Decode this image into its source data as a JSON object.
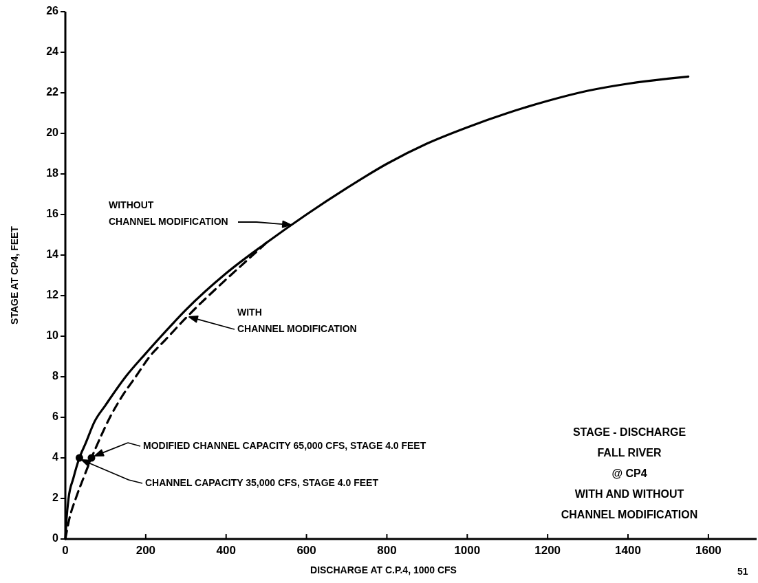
{
  "chart_data": {
    "type": "line",
    "title": "STAGE - DISCHARGE\nFALL RIVER\n@ CP4\nWITH AND WITHOUT\nCHANNEL MODIFICATION",
    "xlabel": "DISCHARGE AT C.P.4,  1000 CFS",
    "ylabel": "STAGE AT CP4,  FEET",
    "series": [
      {
        "type": "line",
        "line_style": "solid",
        "color": "#000000",
        "x": [
          0,
          3,
          8,
          20,
          35,
          50,
          73,
          100,
          150,
          200,
          250,
          300,
          400,
          500,
          600,
          700,
          800,
          900,
          1000,
          1100,
          1200,
          1300,
          1400,
          1500,
          1550
        ],
        "values": [
          0,
          1,
          2,
          3,
          4,
          4.7,
          5.8,
          6.6,
          8,
          9.15,
          10.25,
          11.3,
          13.1,
          14.6,
          16.0,
          17.3,
          18.5,
          19.5,
          20.3,
          21.0,
          21.6,
          22.1,
          22.45,
          22.7,
          22.8
        ]
      },
      {
        "type": "line",
        "line_style": "dashed",
        "color": "#000000",
        "x": [
          0,
          10,
          26,
          45,
          65,
          87,
          111,
          140,
          175,
          210,
          248,
          300,
          400,
          450,
          500
        ],
        "values": [
          0,
          1,
          2,
          3,
          4,
          5,
          6,
          7,
          8,
          9,
          9.8,
          10.9,
          12.8,
          13.7,
          14.6
        ]
      },
      {
        "type": "scatter",
        "marker": "circle",
        "color": "#000000",
        "x": [
          35,
          65
        ],
        "values": [
          4,
          4
        ]
      }
    ],
    "xlim": [
      0,
      1720
    ],
    "ylim": [
      0,
      26
    ],
    "xticks": [
      0,
      200,
      400,
      600,
      800,
      1000,
      1200,
      1400,
      1600
    ],
    "yticks": [
      0,
      2,
      4,
      6,
      8,
      10,
      12,
      14,
      16,
      18,
      20,
      22,
      24,
      26
    ],
    "marker": "none",
    "annotations": [
      "WITHOUT\nCHANNEL MODIFICATION",
      "WITH\nCHANNEL MODIFICATION",
      "MODIFIED CHANNEL CAPACITY 65,000 CFS, STAGE 4.0 FEET",
      "CHANNEL CAPACITY 35,000 CFS, STAGE 4.0 FEET",
      "51"
    ]
  }
}
